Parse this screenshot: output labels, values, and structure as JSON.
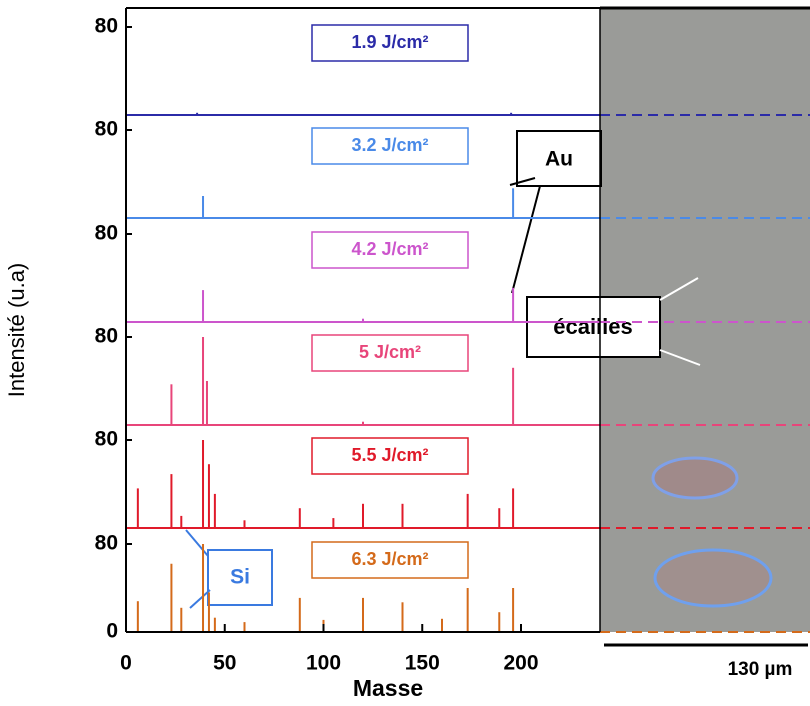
{
  "figure": {
    "y_label": "Intensité (u.a)",
    "x_label": "Masse",
    "au": "Au",
    "ecailles": "écailles",
    "si": "Si",
    "scale": "130 µm"
  },
  "chart_data": [
    {
      "type": "stem",
      "title": "1.9 J/cm²",
      "color": "#2b2ba8",
      "x": [
        36,
        195
      ],
      "values": [
        2,
        2
      ],
      "ylim": [
        0,
        80
      ],
      "yticks": [
        80
      ]
    },
    {
      "type": "stem",
      "title": "3.2 J/cm²",
      "color": "#4a8ae8",
      "x": [
        39,
        196
      ],
      "values": [
        20,
        27
      ],
      "ylim": [
        0,
        80
      ],
      "yticks": [
        80
      ]
    },
    {
      "type": "stem",
      "title": "4.2 J/cm²",
      "color": "#cc55cc",
      "x": [
        39,
        120,
        196
      ],
      "values": [
        29,
        3,
        31
      ],
      "ylim": [
        0,
        80
      ],
      "yticks": [
        80
      ]
    },
    {
      "type": "stem",
      "title": "5 J/cm²",
      "color": "#e8457a",
      "x": [
        23,
        39,
        41,
        120,
        196
      ],
      "values": [
        37,
        80,
        40,
        3,
        52
      ],
      "ylim": [
        0,
        80
      ],
      "yticks": [
        80
      ]
    },
    {
      "type": "stem",
      "title": "5.5 J/cm²",
      "color": "#e01a2a",
      "x": [
        6,
        23,
        28,
        39,
        42,
        45,
        60,
        88,
        105,
        120,
        140,
        173,
        189,
        196
      ],
      "values": [
        36,
        49,
        11,
        80,
        58,
        31,
        7,
        18,
        9,
        22,
        22,
        31,
        18,
        36
      ],
      "ylim": [
        0,
        80
      ],
      "yticks": [
        80
      ]
    },
    {
      "type": "stem",
      "title": "6.3 J/cm²",
      "color": "#d46a1a",
      "x": [
        6,
        23,
        28,
        39,
        42,
        45,
        60,
        88,
        100,
        120,
        140,
        160,
        173,
        189,
        196
      ],
      "values": [
        28,
        62,
        22,
        80,
        36,
        13,
        9,
        31,
        11,
        31,
        27,
        12,
        40,
        18,
        40
      ],
      "ylim": [
        0,
        80
      ],
      "yticks": [
        0,
        80
      ],
      "xlim": [
        0,
        240
      ],
      "xticks": [
        0,
        50,
        100,
        150,
        200
      ]
    }
  ]
}
